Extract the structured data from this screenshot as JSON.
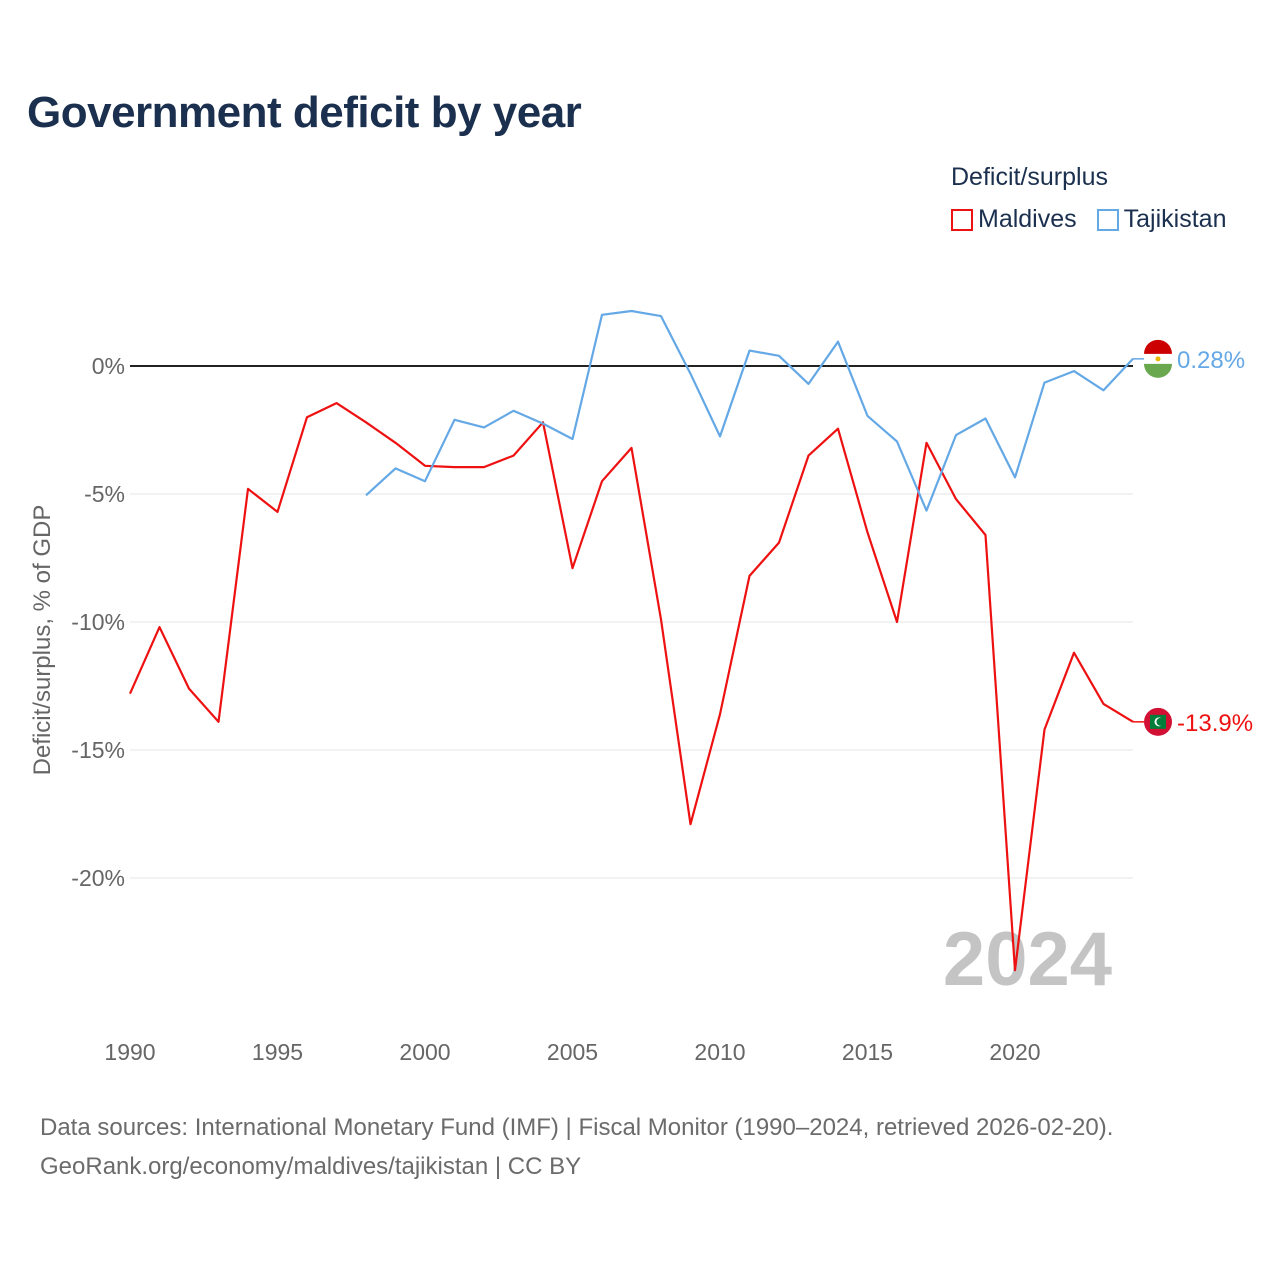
{
  "title": "Government deficit by year",
  "legend": {
    "title": "Deficit/surplus",
    "items": [
      {
        "name": "Maldives",
        "color": "#ee1111"
      },
      {
        "name": "Tajikistan",
        "color": "#64a8e6"
      }
    ]
  },
  "source": {
    "line1": "Data sources: International Monetary Fund (IMF) | Fiscal Monitor (1990–2024, retrieved 2026-02-20).",
    "line2": "GeoRank.org/economy/maldives/tajikistan | CC BY"
  },
  "chart_data": {
    "type": "line",
    "title": "Government deficit by year",
    "xlabel": "",
    "ylabel": "Deficit/surplus, % of GDP",
    "xlim": [
      1990,
      2024
    ],
    "ylim": [
      -24,
      3
    ],
    "x_ticks": [
      1990,
      1995,
      2000,
      2005,
      2010,
      2015,
      2020
    ],
    "y_ticks": [
      0,
      -5,
      -10,
      -15,
      -20
    ],
    "y_tick_labels": [
      "0%",
      "-5%",
      "-10%",
      "-15%",
      "-20%"
    ],
    "year_watermark": "2024",
    "series": [
      {
        "name": "Maldives",
        "color": "#ee1111",
        "end_label": "-13.9%",
        "x": [
          1990,
          1991,
          1992,
          1993,
          1994,
          1995,
          1996,
          1997,
          1998,
          1999,
          2000,
          2001,
          2002,
          2003,
          2004,
          2005,
          2006,
          2007,
          2008,
          2009,
          2010,
          2011,
          2012,
          2013,
          2014,
          2015,
          2016,
          2017,
          2018,
          2019,
          2020,
          2021,
          2022,
          2023,
          2024
        ],
        "values": [
          -12.8,
          -10.2,
          -12.6,
          -13.9,
          -4.8,
          -5.7,
          -2.0,
          -1.45,
          -2.2,
          -3.0,
          -3.9,
          -3.95,
          -3.95,
          -3.5,
          -2.2,
          -7.9,
          -4.5,
          -3.2,
          -9.9,
          -17.9,
          -13.6,
          -8.2,
          -6.9,
          -3.5,
          -2.45,
          -6.5,
          -10.0,
          -3.0,
          -5.2,
          -6.6,
          -23.6,
          -14.2,
          -11.2,
          -13.2,
          -13.9
        ]
      },
      {
        "name": "Tajikistan",
        "color": "#64a8e6",
        "end_label": "0.28%",
        "x": [
          1998,
          1999,
          2000,
          2001,
          2002,
          2003,
          2004,
          2005,
          2006,
          2007,
          2008,
          2009,
          2010,
          2011,
          2012,
          2013,
          2014,
          2015,
          2016,
          2017,
          2018,
          2019,
          2020,
          2021,
          2022,
          2023,
          2024
        ],
        "values": [
          -5.05,
          -4.0,
          -4.5,
          -2.1,
          -2.4,
          -1.75,
          -2.25,
          -2.85,
          2.0,
          2.15,
          1.95,
          -0.3,
          -2.75,
          0.6,
          0.4,
          -0.7,
          0.95,
          -1.95,
          -2.95,
          -5.65,
          -2.7,
          -2.05,
          -4.35,
          -0.65,
          -0.2,
          -0.95,
          0.28
        ]
      }
    ]
  }
}
